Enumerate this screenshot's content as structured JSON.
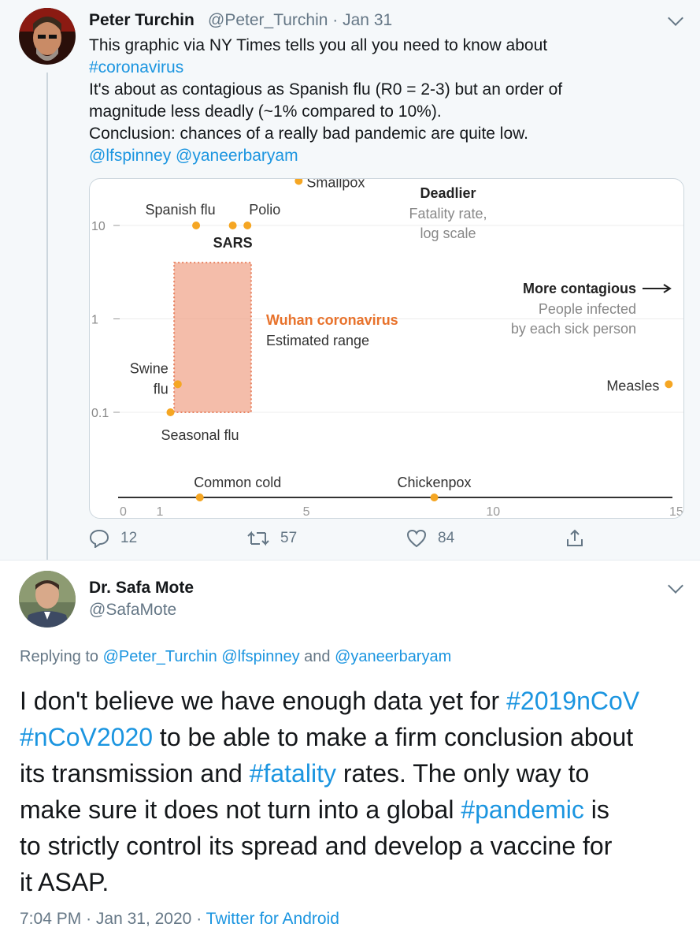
{
  "tweet1": {
    "author_name": "Peter Turchin",
    "handle": "@Peter_Turchin",
    "dot": "·",
    "date": "Jan 31",
    "lines": [
      "This graphic via NY Times tells you all you need to know about",
      "It's about as contagious as Spanish flu (R0 = 2-3) but an order of",
      "magnitude less deadly (~1% compared to 10%).",
      "Conclusion: chances of a really bad pandemic are quite low."
    ],
    "hashtag": "#coronavirus",
    "mention1": "@lfspinney",
    "mention2": "@yaneerbaryam",
    "actions": {
      "replies": "12",
      "retweets": "57",
      "likes": "84"
    }
  },
  "chart_data": {
    "type": "scatter",
    "x_axis": {
      "ticks": [
        "0",
        "1",
        "5",
        "10",
        "15"
      ],
      "lim": [
        0,
        15
      ]
    },
    "y_axis": {
      "scale": "log",
      "ticks": [
        "10",
        "1",
        "0.1"
      ],
      "lim": [
        0.05,
        30
      ]
    },
    "annotations": {
      "deadlier_title": "Deadlier",
      "deadlier_sub1": "Fatality rate,",
      "deadlier_sub2": "log scale",
      "contagious_title": "More contagious",
      "contagious_sub1": "People infected",
      "contagious_sub2": "by each sick person",
      "region_title": "Wuhan coronavirus",
      "region_sub": "Estimated range"
    },
    "region": {
      "x": [
        1.4,
        3.5
      ],
      "y": [
        0.1,
        4
      ]
    },
    "points": [
      {
        "label": "Smallpox",
        "x": 4.8,
        "y": 30
      },
      {
        "label": "Spanish flu",
        "x": 2.0,
        "y": 10
      },
      {
        "label": "SARS",
        "x": 3.0,
        "y": 10
      },
      {
        "label": "Polio",
        "x": 3.4,
        "y": 10
      },
      {
        "label": "Swine",
        "label2": "flu",
        "x": 1.5,
        "y": 0.2
      },
      {
        "label": "Seasonal flu",
        "x": 1.3,
        "y": 0.1
      },
      {
        "label": "Measles",
        "x": 14.9,
        "y": 0.2
      },
      {
        "label": "Common cold",
        "x": 2.1,
        "y": 0
      },
      {
        "label": "Chickenpox",
        "x": 8.5,
        "y": 0
      }
    ],
    "colors": {
      "point": "#f5a623",
      "region": "#f0a78e",
      "region_title": "#e8722b"
    }
  },
  "tweet2": {
    "author_name": "Dr. Safa Mote",
    "handle": "@SafaMote",
    "replying_label": "Replying to",
    "replying_handles": "@Peter_Turchin @lfspinney",
    "replying_and": "and",
    "replying_last": "@yaneerbaryam",
    "text": {
      "l1a": "I don't believe we have enough data yet for",
      "l1b": "#2019nCoV",
      "l2a": "#nCoV2020",
      "l2b": "to be able to make a firm conclusion about",
      "l3a": "its transmission and",
      "l3b": "#fatality",
      "l3c": "rates. The only way to",
      "l4a": "make sure it does not turn into a global",
      "l4b": "#pandemic",
      "l4c": "is",
      "l5": "to strictly control its spread and develop a vaccine for",
      "l6": "it ASAP."
    },
    "time": "7:04 PM",
    "dot": "·",
    "date": "Jan 31, 2020",
    "dot2": "·",
    "source": "Twitter for Android"
  }
}
